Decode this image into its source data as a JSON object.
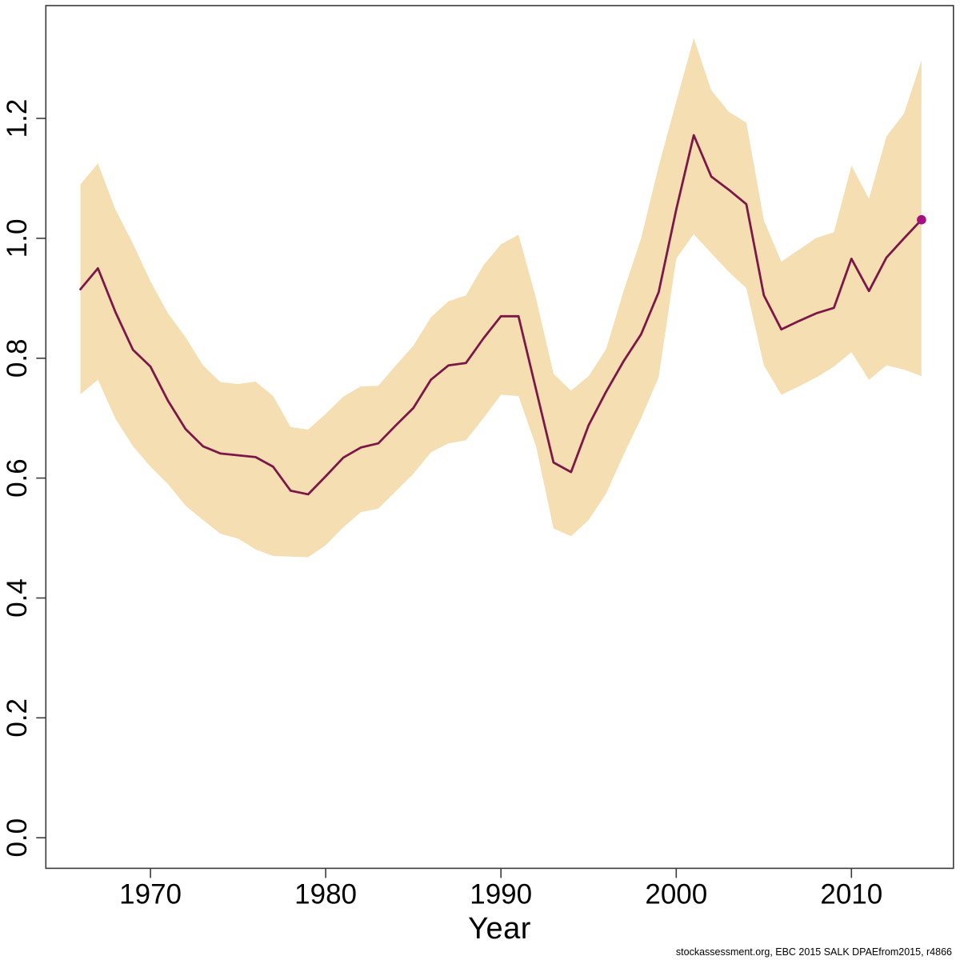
{
  "caption": "stockassessment.org, EBC 2015 SALK DPAEfrom2015, r4866",
  "chart_data": {
    "type": "line",
    "title": "",
    "xlabel": "Year",
    "ylabel": "",
    "grid": false,
    "legend_position": "none",
    "xlim": [
      1964.1,
      2015.9
    ],
    "ylim": [
      -0.053,
      1.388
    ],
    "x_axis": {
      "ticks": [
        1970,
        1980,
        1990,
        2000,
        2010
      ]
    },
    "y_axis": {
      "ticks": [
        0.0,
        0.2,
        0.4,
        0.6,
        0.8,
        1.0,
        1.2
      ],
      "tick_labels": [
        "0.0",
        "0.2",
        "0.4",
        "0.6",
        "0.8",
        "1.0",
        "1.2"
      ]
    },
    "x": [
      1966,
      1967,
      1968,
      1969,
      1970,
      1971,
      1972,
      1973,
      1974,
      1975,
      1976,
      1977,
      1978,
      1979,
      1980,
      1981,
      1982,
      1983,
      1984,
      1985,
      1986,
      1987,
      1988,
      1989,
      1990,
      1991,
      1992,
      1993,
      1994,
      1995,
      1996,
      1997,
      1998,
      1999,
      2000,
      2001,
      2002,
      2003,
      2004,
      2005,
      2006,
      2007,
      2008,
      2009,
      2010,
      2011,
      2012,
      2013,
      2014
    ],
    "series": [
      {
        "name": "estimate",
        "role": "center-line",
        "values": [
          0.915,
          0.95,
          0.877,
          0.814,
          0.786,
          0.729,
          0.682,
          0.653,
          0.641,
          0.638,
          0.635,
          0.619,
          0.579,
          0.573,
          0.603,
          0.634,
          0.651,
          0.658,
          0.688,
          0.717,
          0.764,
          0.788,
          0.792,
          0.833,
          0.87,
          0.87,
          0.748,
          0.626,
          0.61,
          0.688,
          0.744,
          0.795,
          0.84,
          0.91,
          1.048,
          1.172,
          1.103,
          1.081,
          1.057,
          0.905,
          0.848,
          0.862,
          0.875,
          0.884,
          0.966,
          0.912,
          0.968,
          1.0,
          1.031
        ]
      },
      {
        "name": "ci_upper",
        "role": "band-upper-edge",
        "values": [
          1.09,
          1.125,
          1.048,
          0.991,
          0.928,
          0.875,
          0.835,
          0.788,
          0.76,
          0.757,
          0.761,
          0.737,
          0.685,
          0.681,
          0.707,
          0.736,
          0.753,
          0.754,
          0.788,
          0.821,
          0.868,
          0.895,
          0.905,
          0.955,
          0.99,
          1.006,
          0.9,
          0.774,
          0.746,
          0.77,
          0.815,
          0.912,
          1.0,
          1.12,
          1.228,
          1.334,
          1.247,
          1.211,
          1.193,
          1.03,
          0.961,
          0.981,
          1.001,
          1.01,
          1.121,
          1.066,
          1.17,
          1.208,
          1.297
        ]
      },
      {
        "name": "ci_lower",
        "role": "band-lower-edge",
        "values": [
          0.74,
          0.764,
          0.699,
          0.653,
          0.619,
          0.59,
          0.554,
          0.53,
          0.507,
          0.499,
          0.481,
          0.47,
          0.469,
          0.468,
          0.488,
          0.518,
          0.543,
          0.549,
          0.578,
          0.607,
          0.643,
          0.658,
          0.663,
          0.7,
          0.739,
          0.737,
          0.653,
          0.516,
          0.503,
          0.53,
          0.574,
          0.639,
          0.7,
          0.768,
          0.966,
          1.007,
          0.975,
          0.944,
          0.917,
          0.788,
          0.739,
          0.753,
          0.768,
          0.786,
          0.81,
          0.764,
          0.788,
          0.781,
          0.77
        ]
      }
    ],
    "endpoint_marker": {
      "year": 2014,
      "value": 1.031
    },
    "colors": {
      "line": "#7D1747",
      "band": "#F5DFB2",
      "marker": "#A50F7E",
      "text": "#000000",
      "frame": "#3a3a3a"
    }
  }
}
